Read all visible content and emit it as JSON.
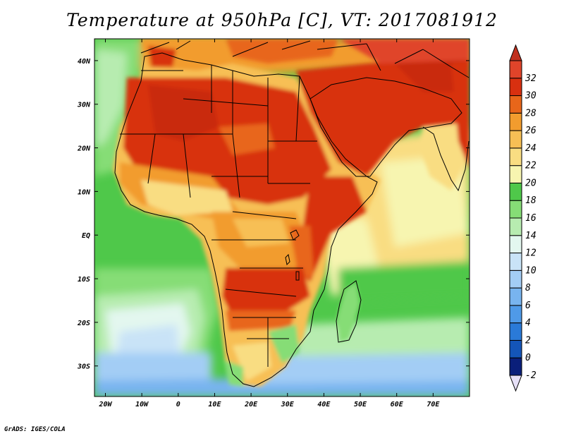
{
  "title": "Temperature at 950hPa [C], VT: 2017081912",
  "credit": "GrADS: IGES/COLA",
  "map": {
    "lon_range": [
      -23,
      80
    ],
    "lat_range": [
      -37,
      45
    ],
    "x_ticks": [
      {
        "lon": -20,
        "label": "20W"
      },
      {
        "lon": -10,
        "label": "10W"
      },
      {
        "lon": 0,
        "label": "0"
      },
      {
        "lon": 10,
        "label": "10E"
      },
      {
        "lon": 20,
        "label": "20E"
      },
      {
        "lon": 30,
        "label": "30E"
      },
      {
        "lon": 40,
        "label": "40E"
      },
      {
        "lon": 50,
        "label": "50E"
      },
      {
        "lon": 60,
        "label": "60E"
      },
      {
        "lon": 70,
        "label": "70E"
      }
    ],
    "y_ticks": [
      {
        "lat": 40,
        "label": "40N"
      },
      {
        "lat": 30,
        "label": "30N"
      },
      {
        "lat": 20,
        "label": "20N"
      },
      {
        "lat": 10,
        "label": "10N"
      },
      {
        "lat": 0,
        "label": "EQ"
      },
      {
        "lat": -10,
        "label": "10S"
      },
      {
        "lat": -20,
        "label": "20S"
      },
      {
        "lat": -30,
        "label": "30S"
      }
    ]
  },
  "colorbar": {
    "levels": [
      "-2",
      "0",
      "2",
      "4",
      "6",
      "8",
      "10",
      "12",
      "14",
      "16",
      "18",
      "20",
      "22",
      "24",
      "26",
      "28",
      "30",
      "32"
    ],
    "colors": [
      "#0a1f7a",
      "#1455b8",
      "#2a7ad8",
      "#4f9ae8",
      "#78b4ef",
      "#a3cdf5",
      "#c9e3f7",
      "#e3f7ef",
      "#b7ecb0",
      "#86dd76",
      "#4fc84a",
      "#f7f5b0",
      "#f9dd82",
      "#f7bf55",
      "#f29c2e",
      "#e8661a",
      "#d83010",
      "#e0442a"
    ],
    "overflow_high": "#c0301e",
    "overflow_low": "#e6e0f7"
  }
}
